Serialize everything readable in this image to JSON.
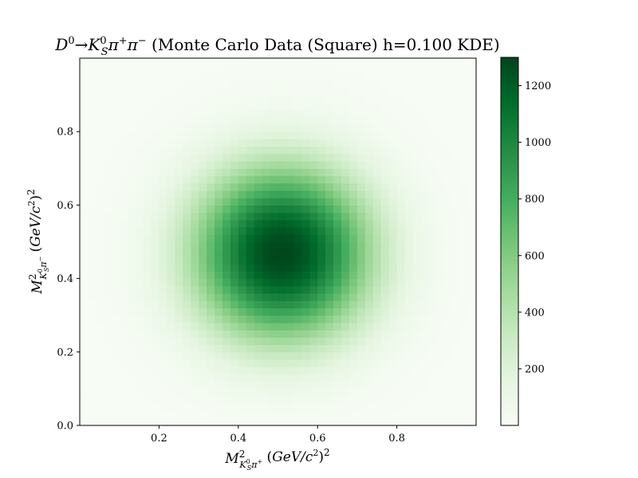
{
  "chart_data": {
    "type": "heatmap",
    "title": {
      "particle_D": "D",
      "sup_D": "0",
      "arrow": "→",
      "particle_K": "K",
      "sup_K": "0",
      "sub_K": "S",
      "pi1": "π",
      "sup_pi1": "+",
      "pi2": "π",
      "sup_pi2": "−",
      "suffix": " (Monte Carlo Data (Square) h=0.100 KDE)"
    },
    "xlabel": {
      "M": "M",
      "sup": "2",
      "sub_K": "K",
      "sub_K_sup": "0",
      "sub_K_sub": "S",
      "sub_pi": "π",
      "sub_pi_sup": "+",
      "units_pre": " (",
      "units_main": "GeV/c",
      "units_exp": "2",
      "units_close": ")",
      "units_outer_exp": "2"
    },
    "ylabel": {
      "M": "M",
      "sup": "2",
      "sub_K": "K",
      "sub_K_sup": "0",
      "sub_K_sub": "S",
      "sub_pi": "π",
      "sub_pi_sup": "−",
      "units_pre": " (",
      "units_main": "GeV/c",
      "units_exp": "2",
      "units_close": ")",
      "units_outer_exp": "2"
    },
    "xlim": [
      0.0,
      1.0
    ],
    "ylim": [
      0.0,
      1.0
    ],
    "xticks": [
      {
        "value": 0.2,
        "label": "0.2"
      },
      {
        "value": 0.4,
        "label": "0.4"
      },
      {
        "value": 0.6,
        "label": "0.6"
      },
      {
        "value": 0.8,
        "label": "0.8"
      }
    ],
    "yticks": [
      {
        "value": 0.0,
        "label": "0.0"
      },
      {
        "value": 0.2,
        "label": "0.2"
      },
      {
        "value": 0.4,
        "label": "0.4"
      },
      {
        "value": 0.6,
        "label": "0.6"
      },
      {
        "value": 0.8,
        "label": "0.8"
      }
    ],
    "grid": {
      "nx": 50,
      "ny": 50
    },
    "density_model": {
      "peak": 1290,
      "x_center": 0.51,
      "y_center": 0.47,
      "x_sigma": 0.165,
      "y_sigma": 0.175,
      "shape_exponent": 2.2
    },
    "colormap": "Greens",
    "colormap_stops": [
      "#f7fcf5",
      "#e5f5e0",
      "#c7e9c0",
      "#a1d99b",
      "#74c476",
      "#41ab5d",
      "#238b45",
      "#006d2c",
      "#00441b"
    ],
    "colorbar": {
      "range": [
        0,
        1300
      ],
      "ticks": [
        {
          "value": 200,
          "label": "200"
        },
        {
          "value": 400,
          "label": "400"
        },
        {
          "value": 600,
          "label": "600"
        },
        {
          "value": 800,
          "label": "800"
        },
        {
          "value": 1000,
          "label": "1000"
        },
        {
          "value": 1200,
          "label": "1200"
        }
      ]
    },
    "legend": "none"
  }
}
